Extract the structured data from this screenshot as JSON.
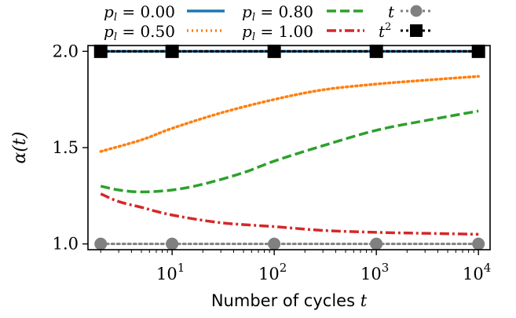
{
  "chart_data": {
    "type": "line",
    "title": "",
    "xlabel": "Number of cycles t",
    "ylabel": "α(t)",
    "xscale": "log",
    "xlim": [
      1.5,
      13000
    ],
    "ylim": [
      0.97,
      2.03
    ],
    "xticks": [
      {
        "value": 10,
        "base": "10",
        "exp": "1"
      },
      {
        "value": 100,
        "base": "10",
        "exp": "2"
      },
      {
        "value": 1000,
        "base": "10",
        "exp": "3"
      },
      {
        "value": 10000,
        "base": "10",
        "exp": "4"
      }
    ],
    "yticks": [
      {
        "value": 1.0,
        "label": "1.0"
      },
      {
        "value": 1.5,
        "label": "1.5"
      },
      {
        "value": 2.0,
        "label": "2.0"
      }
    ],
    "legend_placement": "top (above plot), two rows",
    "series": [
      {
        "name": "p_l = 0.00",
        "legend_math": "pl = 0.00",
        "color": "#1f77b4",
        "style": "solid",
        "x": [
          2,
          10,
          100,
          1000,
          10000
        ],
        "y": [
          2.0,
          2.0,
          2.0,
          2.0,
          2.0
        ]
      },
      {
        "name": "p_l = 0.50",
        "legend_math": "pl = 0.50",
        "color": "#ff7f0e",
        "style": "dotted",
        "x": [
          2,
          5,
          10,
          30,
          100,
          300,
          1000,
          3000,
          10000
        ],
        "y": [
          1.48,
          1.54,
          1.6,
          1.68,
          1.75,
          1.8,
          1.83,
          1.85,
          1.87
        ]
      },
      {
        "name": "p_l = 0.80",
        "legend_math": "pl = 0.80",
        "color": "#2ca02c",
        "style": "dashed",
        "x": [
          2,
          3,
          5,
          10,
          20,
          50,
          100,
          300,
          1000,
          3000,
          10000
        ],
        "y": [
          1.3,
          1.28,
          1.27,
          1.28,
          1.31,
          1.37,
          1.43,
          1.51,
          1.59,
          1.64,
          1.69
        ]
      },
      {
        "name": "p_l = 1.00",
        "legend_math": "pl = 1.00",
        "color": "#d62728",
        "style": "dashdot",
        "x": [
          2,
          3,
          5,
          10,
          30,
          100,
          300,
          1000,
          3000,
          10000
        ],
        "y": [
          1.26,
          1.22,
          1.19,
          1.15,
          1.11,
          1.09,
          1.07,
          1.06,
          1.055,
          1.05
        ]
      },
      {
        "name": "t",
        "legend_math": "t",
        "color": "#808080",
        "style": "dotted",
        "marker": "circle",
        "x": [
          2,
          10,
          100,
          1000,
          10000
        ],
        "y": [
          1.0,
          1.0,
          1.0,
          1.0,
          1.0
        ]
      },
      {
        "name": "t^2",
        "legend_math": "t2",
        "color": "#000000",
        "style": "dotted",
        "marker": "square",
        "x": [
          2,
          10,
          100,
          1000,
          10000
        ],
        "y": [
          2.0,
          2.0,
          2.0,
          2.0,
          2.0
        ]
      }
    ]
  }
}
